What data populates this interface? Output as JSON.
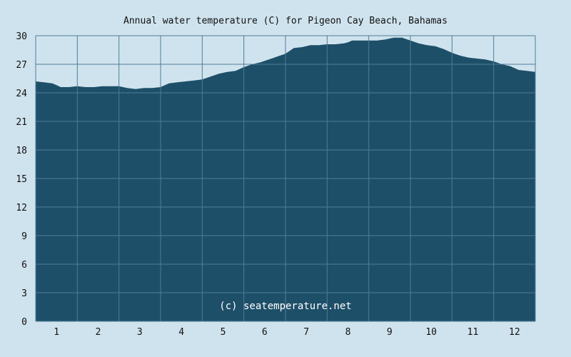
{
  "chart_data": {
    "type": "area",
    "title": "Annual water temperature (C) for Pigeon Cay Beach, Bahamas",
    "xlabel": "",
    "ylabel": "",
    "x_ticks": [
      "1",
      "2",
      "3",
      "4",
      "5",
      "6",
      "7",
      "8",
      "9",
      "10",
      "11",
      "12"
    ],
    "y_ticks": [
      "0",
      "3",
      "6",
      "9",
      "12",
      "15",
      "18",
      "21",
      "24",
      "27",
      "30"
    ],
    "xlim": [
      0.5,
      12.5
    ],
    "ylim": [
      0,
      30
    ],
    "grid": true,
    "watermark": "(c) seatemperature.net",
    "series": [
      {
        "x": [
          0.5,
          0.7,
          0.9,
          1.0,
          1.1,
          1.3,
          1.5,
          1.7,
          1.9,
          2.1,
          2.3,
          2.5,
          2.7,
          2.9,
          3.1,
          3.3,
          3.5,
          3.7,
          3.9,
          4.1,
          4.3,
          4.5,
          4.7,
          4.9,
          5.1,
          5.3,
          5.5,
          5.7,
          5.9,
          6.1,
          6.3,
          6.5,
          6.7,
          6.9,
          7.1,
          7.3,
          7.5,
          7.7,
          7.9,
          8.0,
          8.1,
          8.3,
          8.5,
          8.7,
          8.9,
          9.1,
          9.3,
          9.5,
          9.7,
          9.9,
          10.1,
          10.3,
          10.5,
          10.7,
          10.9,
          11.1,
          11.3,
          11.5,
          11.7,
          11.9,
          12.1,
          12.3,
          12.5
        ],
        "values": [
          25.2,
          25.1,
          25.0,
          24.8,
          24.6,
          24.6,
          24.7,
          24.6,
          24.6,
          24.7,
          24.7,
          24.7,
          24.5,
          24.4,
          24.5,
          24.5,
          24.6,
          25.0,
          25.1,
          25.2,
          25.3,
          25.4,
          25.7,
          26.0,
          26.2,
          26.3,
          26.7,
          27.0,
          27.2,
          27.5,
          27.8,
          28.1,
          28.7,
          28.8,
          29.0,
          29.0,
          29.1,
          29.1,
          29.2,
          29.3,
          29.5,
          29.5,
          29.5,
          29.5,
          29.6,
          29.8,
          29.8,
          29.5,
          29.2,
          29.0,
          28.9,
          28.6,
          28.2,
          27.9,
          27.7,
          27.6,
          27.5,
          27.3,
          27.0,
          26.8,
          26.4,
          26.3,
          26.2
        ]
      }
    ],
    "colors": {
      "background": "#cfe3ee",
      "plot_background": "#cfe3ee",
      "fill": "#1e4f69",
      "grid": "#4f7c96",
      "text": "#111111",
      "watermark": "#ffffff"
    }
  }
}
